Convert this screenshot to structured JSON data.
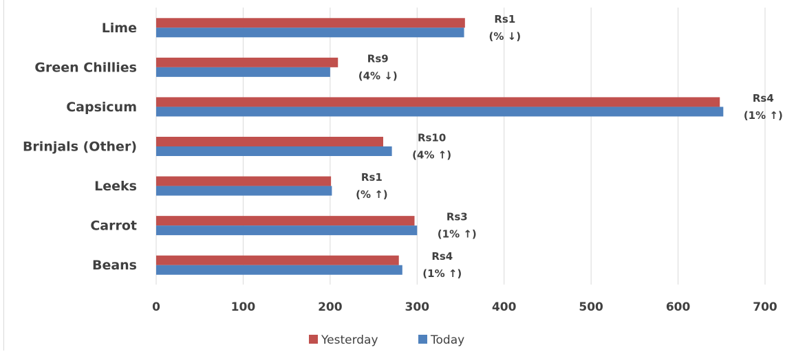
{
  "chart_data": {
    "type": "bar",
    "orientation": "horizontal",
    "title": "",
    "xlabel": "",
    "ylabel": "",
    "xlim": [
      0,
      700
    ],
    "x_ticks": [
      "0",
      "100",
      "200",
      "300",
      "400",
      "500",
      "600",
      "700"
    ],
    "grid": true,
    "legend_position": "bottom",
    "categories": [
      "Lime",
      "Green Chillies",
      "Capsicum",
      "Brinjals (Other)",
      "Leeks",
      "Carrot",
      "Beans"
    ],
    "series": [
      {
        "name": "Yesterday",
        "color": "#c0504d",
        "values": [
          355,
          209,
          648,
          261,
          201,
          297,
          279
        ]
      },
      {
        "name": "Today",
        "color": "#4f81bd",
        "values": [
          354,
          200,
          652,
          271,
          202,
          300,
          283
        ]
      }
    ],
    "data_labels": [
      {
        "change": "Rs1",
        "percent": "(% ↓)"
      },
      {
        "change": "Rs9",
        "percent": "(4% ↓)"
      },
      {
        "change": "Rs4",
        "percent": "(1% ↑)"
      },
      {
        "change": "Rs10",
        "percent": "(4% ↑)"
      },
      {
        "change": "Rs1",
        "percent": "(% ↑)"
      },
      {
        "change": "Rs3",
        "percent": "(1% ↑)"
      },
      {
        "change": "Rs4",
        "percent": "(1% ↑)"
      }
    ]
  }
}
